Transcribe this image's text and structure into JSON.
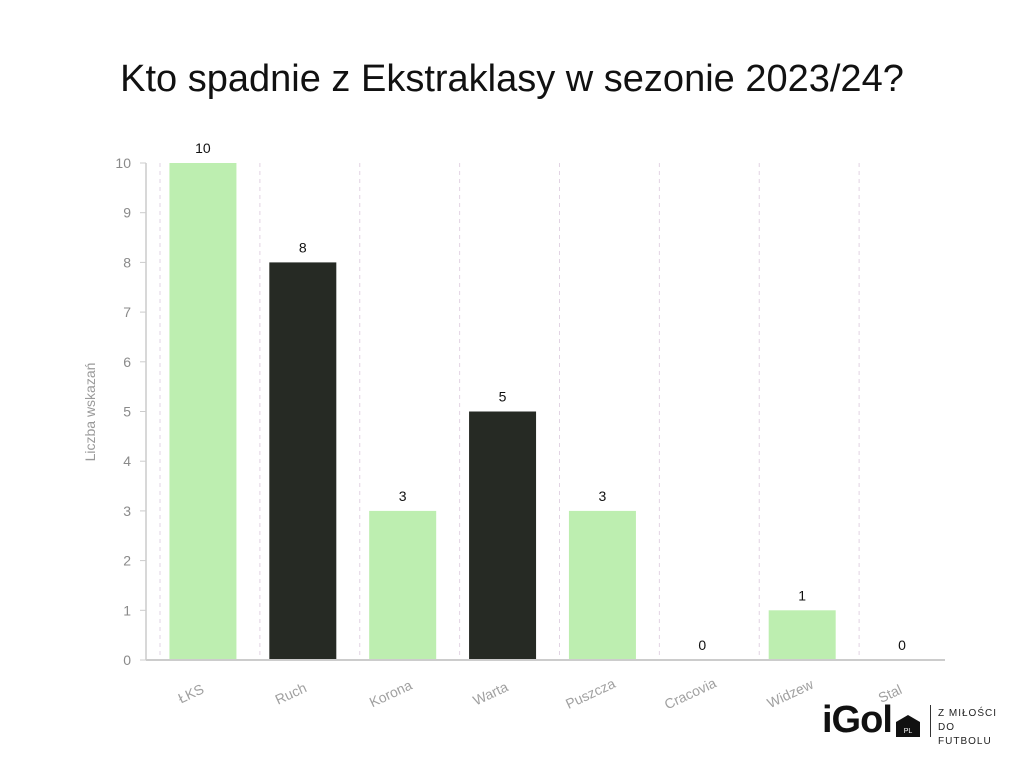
{
  "chart_data": {
    "type": "bar",
    "title": "Kto spadnie z Ekstraklasy w sezonie 2023/24?",
    "ylabel": "Liczba wskazań",
    "xlabel": "",
    "ylim": [
      0,
      10
    ],
    "yticks": [
      0,
      1,
      2,
      3,
      4,
      5,
      6,
      7,
      8,
      9,
      10
    ],
    "categories": [
      "ŁKS",
      "Ruch",
      "Korona",
      "Warta",
      "Puszcza",
      "Cracovia",
      "Widzew",
      "Stal"
    ],
    "values": [
      10,
      8,
      3,
      5,
      3,
      0,
      1,
      0
    ],
    "bar_colors": [
      "#bdeeb0",
      "#262a24",
      "#bdeeb0",
      "#262a24",
      "#bdeeb0",
      "#bdeeb0",
      "#bdeeb0",
      "#bdeeb0"
    ],
    "grid": true
  },
  "branding": {
    "logo_text": "iGol",
    "badge_text": "PL",
    "tagline_line1": "Z MIŁOŚCI",
    "tagline_line2": "DO FUTBOLU"
  }
}
